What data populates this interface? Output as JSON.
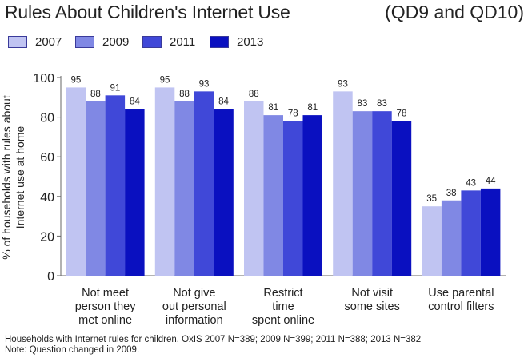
{
  "chart_data": {
    "type": "bar",
    "title": "Rules About Children's Internet Use",
    "subtitle": "(QD9 and QD10)",
    "ylabel": "% of households with rules about Internet use at home",
    "ylabel_lines": [
      "% of households with rules about",
      "Internet use at home"
    ],
    "ylim": [
      0,
      100
    ],
    "yticks": [
      0,
      20,
      40,
      60,
      80,
      100
    ],
    "grid": false,
    "legend_position": "top-left",
    "categories": [
      [
        "Not meet",
        "person they",
        "met online"
      ],
      [
        "Not give",
        "out personal",
        "information"
      ],
      [
        "Restrict",
        "time",
        "spent online"
      ],
      [
        "Not visit",
        "some sites"
      ],
      [
        "Use parental",
        "control filters"
      ]
    ],
    "series": [
      {
        "name": "2007",
        "color": "#c0c4f2",
        "values": [
          95,
          95,
          88,
          93,
          35
        ]
      },
      {
        "name": "2009",
        "color": "#8088e4",
        "values": [
          88,
          88,
          81,
          83,
          38
        ]
      },
      {
        "name": "2011",
        "color": "#4048d8",
        "values": [
          91,
          93,
          78,
          83,
          43
        ]
      },
      {
        "name": "2013",
        "color": "#0a10c0",
        "values": [
          84,
          84,
          81,
          78,
          44
        ]
      }
    ]
  },
  "footnote": {
    "line1": "Households with Internet rules for children. OxIS 2007 N=389; 2009 N=399; 2011 N=388; 2013 N=382",
    "line2": "Note: Question changed in 2009."
  }
}
